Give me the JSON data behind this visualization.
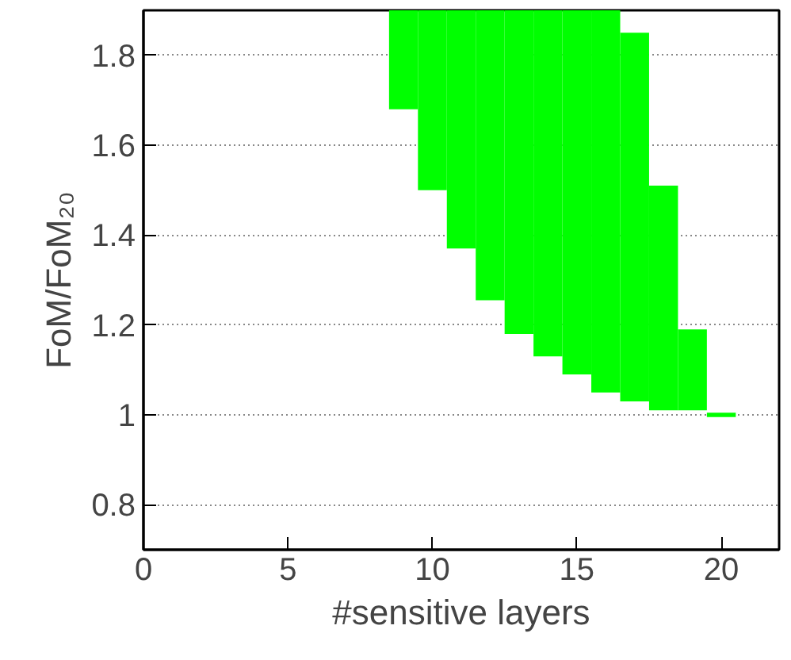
{
  "chart_data": {
    "type": "bar",
    "xlabel": "#sensitive layers",
    "ylabel": "FoM/FoM₂₀",
    "x": [
      9,
      10,
      11,
      12,
      13,
      14,
      15,
      16,
      17,
      18,
      19,
      20
    ],
    "base": [
      1.68,
      1.5,
      1.37,
      1.255,
      1.18,
      1.13,
      1.09,
      1.05,
      1.03,
      1.01,
      1.01,
      0.995
    ],
    "values": [
      0.22,
      0.4,
      0.53,
      0.645,
      0.72,
      0.77,
      0.81,
      0.85,
      0.82,
      0.5,
      0.18,
      0.01
    ],
    "color": "#00ff00",
    "xlim": [
      0,
      22
    ],
    "xticks": [
      0,
      5,
      10,
      15,
      20
    ],
    "ylim": [
      0.7,
      1.9
    ],
    "yticks": [
      0.8,
      1,
      1.2,
      1.4,
      1.6,
      1.8
    ],
    "grid": "y"
  }
}
